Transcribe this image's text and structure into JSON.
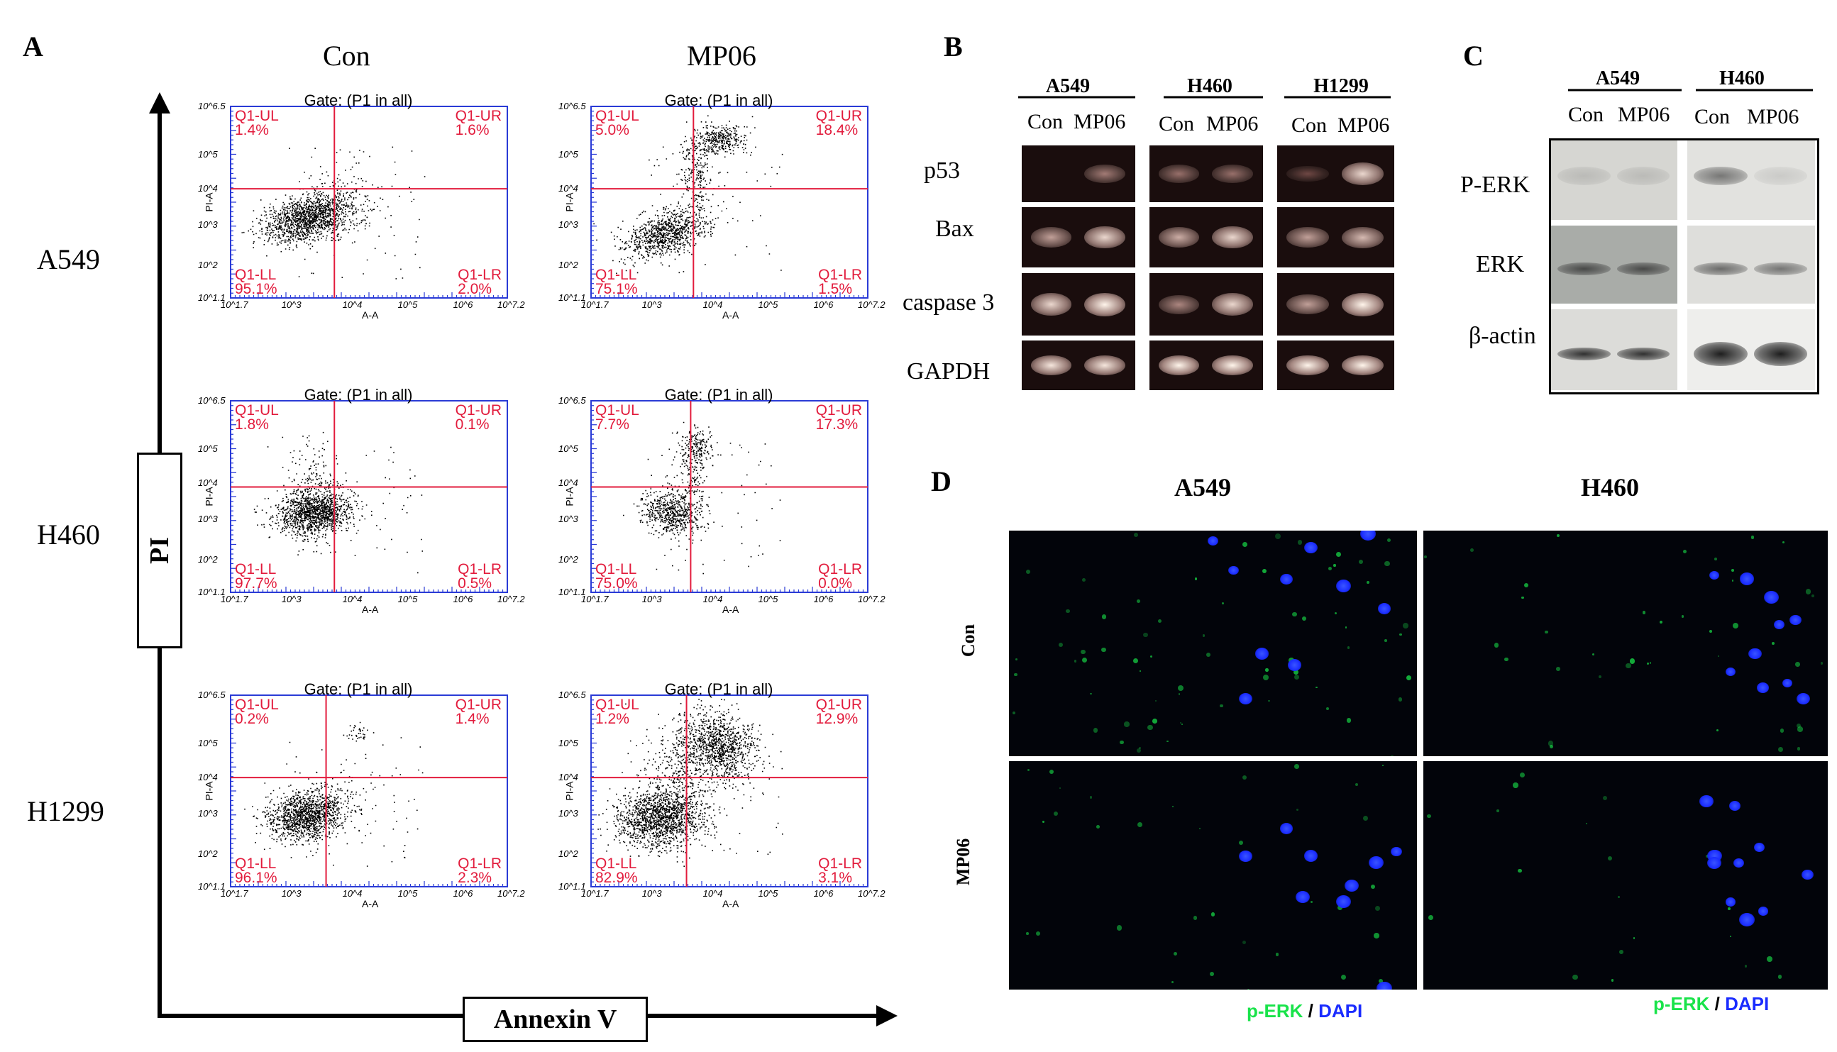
{
  "panels": {
    "A": "A",
    "B": "B",
    "C": "C",
    "D": "D"
  },
  "panel_a": {
    "col_headers": [
      "Con",
      "MP06"
    ],
    "row_headers": [
      "A549",
      "H460",
      "H1299"
    ],
    "y_axis_label": "PI",
    "x_axis_label": "Annexin V",
    "gate_text": "Gate: (P1 in all)",
    "plot_y_label": "PI-A",
    "plot_x_label": "A-A",
    "x_ticks": [
      "10^1.7",
      "10^3",
      "10^4",
      "10^5",
      "10^6",
      "10^7.2"
    ],
    "y_ticks": [
      "10^1.1",
      "10^2",
      "10^3",
      "10^4",
      "10^5",
      "10^6.5"
    ],
    "plots": [
      {
        "id": "a549-con",
        "UL": "Q1-UL\n1.4%",
        "UR": "Q1-UR\n1.6%",
        "LL": "Q1-LL\n95.1%",
        "LR": "Q1-LR\n2.0%"
      },
      {
        "id": "a549-mp06",
        "UL": "Q1-UL\n5.0%",
        "UR": "Q1-UR\n18.4%",
        "LL": "Q1-LL\n75.1%",
        "LR": "Q1-LR\n1.5%"
      },
      {
        "id": "h460-con",
        "UL": "Q1-UL\n1.8%",
        "UR": "Q1-UR\n0.1%",
        "LL": "Q1-LL\n97.7%",
        "LR": "Q1-LR\n0.5%"
      },
      {
        "id": "h460-mp06",
        "UL": "Q1-UL\n7.7%",
        "UR": "Q1-UR\n17.3%",
        "LL": "Q1-LL\n75.0%",
        "LR": "Q1-LR\n0.0%"
      },
      {
        "id": "h1299-con",
        "UL": "Q1-UL\n0.2%",
        "UR": "Q1-UR\n1.4%",
        "LL": "Q1-LL\n96.1%",
        "LR": "Q1-LR\n2.3%"
      },
      {
        "id": "h1299-mp06",
        "UL": "Q1-UL\n1.2%",
        "UR": "Q1-UR\n12.9%",
        "LL": "Q1-LL\n82.9%",
        "LR": "Q1-LR\n3.1%"
      }
    ]
  },
  "panel_b": {
    "cell_lines": [
      "A549",
      "H460",
      "H1299"
    ],
    "lane_labels": [
      "Con",
      "MP06"
    ],
    "genes": [
      "p53",
      "Bax",
      "caspase 3",
      "GAPDH"
    ]
  },
  "panel_c": {
    "cell_lines": [
      "A549",
      "H460"
    ],
    "lane_labels": [
      "Con",
      "MP06"
    ],
    "proteins": [
      "P-ERK",
      "ERK",
      "β-actin"
    ]
  },
  "panel_d": {
    "col_headers": [
      "A549",
      "H460"
    ],
    "row_headers": [
      "Con",
      "MP06"
    ],
    "legend_green": "p-ERK",
    "legend_sep": " / ",
    "legend_blue": "DAPI"
  },
  "colors": {
    "gate_line": "#e21b3c",
    "plot_frame": "#2a3bd6",
    "stain_green": "#19e34a",
    "stain_blue": "#1a2cff"
  }
}
